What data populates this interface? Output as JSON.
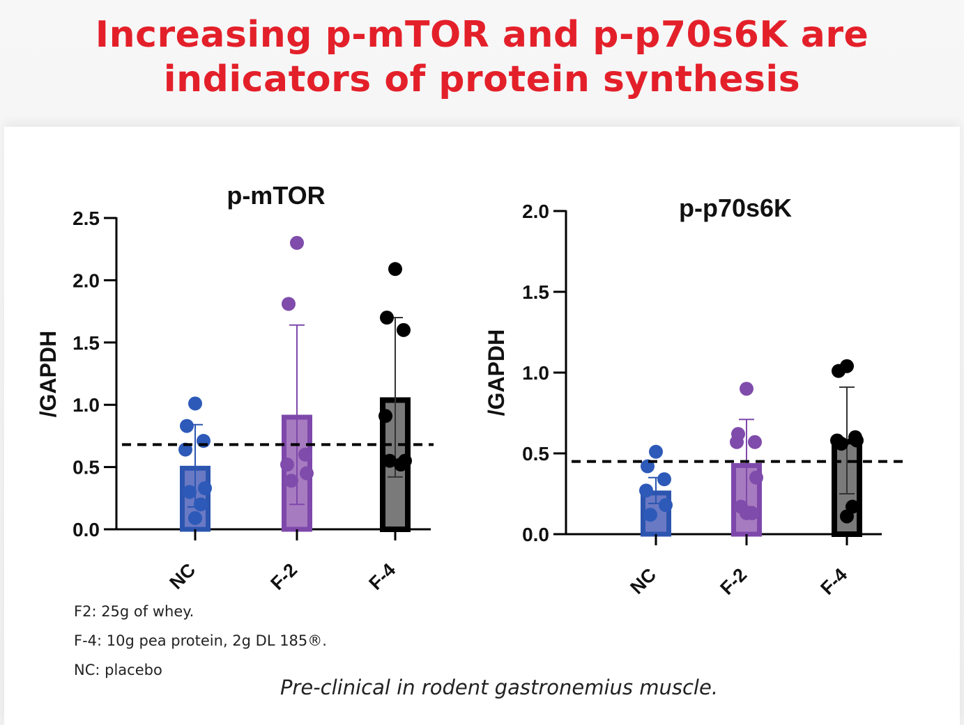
{
  "header": {
    "title_line1": "Increasing p-mTOR and p-p70s6K are",
    "title_line2": "indicators of protein synthesis",
    "color": "#e3202a"
  },
  "notes": [
    "F2: 25g of whey.",
    "F-4: 10g pea protein, 2g DL 185®.",
    "NC: placebo"
  ],
  "caption": "Pre-clinical in rodent gastronemius muscle.",
  "chart_data": [
    {
      "type": "bar",
      "title": "p-mTOR",
      "xlabel": "",
      "ylabel": "/GAPDH",
      "ylim": [
        0,
        2.5
      ],
      "yticks": [
        "0.0",
        "0.5",
        "1.0",
        "1.5",
        "2.0",
        "2.5"
      ],
      "ytick_values": [
        0,
        0.5,
        1.0,
        1.5,
        2.0,
        2.5
      ],
      "categories": [
        "NC",
        "F-2",
        "F-4"
      ],
      "values": [
        0.51,
        0.92,
        1.06
      ],
      "error_upper": [
        0.84,
        1.64,
        1.7
      ],
      "error_lower": [
        0.18,
        0.2,
        0.42
      ],
      "reference_line": 0.68,
      "points": [
        [
          1.01,
          0.83,
          0.71,
          0.64,
          0.33,
          0.3,
          0.2,
          0.09
        ],
        [
          2.3,
          1.81,
          0.6,
          0.52,
          0.45,
          0.39
        ],
        [
          2.09,
          1.7,
          1.6,
          0.91,
          0.55,
          0.55,
          0.52
        ]
      ],
      "colors": {
        "fill": [
          "#6a79c4",
          "#a77bc0",
          "#7a7a7a"
        ],
        "edge": [
          "#2c55b0",
          "#7e48ab",
          "#000000"
        ],
        "point": [
          "#2d5ab8",
          "#7f4cab",
          "#000000"
        ]
      },
      "grid": false,
      "legend": "none"
    },
    {
      "type": "bar",
      "title": "p-p70s6K",
      "xlabel": "",
      "ylabel": "/GAPDH",
      "ylim": [
        0,
        2.0
      ],
      "yticks": [
        "0.0",
        "0.5",
        "1.0",
        "1.5",
        "2.0"
      ],
      "ytick_values": [
        0,
        0.5,
        1.0,
        1.5,
        2.0
      ],
      "categories": [
        "NC",
        "F-2",
        "F-4"
      ],
      "values": [
        0.27,
        0.44,
        0.59
      ],
      "error_upper": [
        0.35,
        0.71,
        0.91
      ],
      "error_lower": [
        0.19,
        0.17,
        0.25
      ],
      "reference_line": 0.45,
      "points": [
        [
          0.51,
          0.42,
          0.34,
          0.27,
          0.18,
          0.12
        ],
        [
          0.9,
          0.62,
          0.57,
          0.57,
          0.35,
          0.17,
          0.13,
          0.13
        ],
        [
          1.04,
          1.01,
          0.6,
          0.58,
          0.58,
          0.56,
          0.17,
          0.11
        ]
      ],
      "colors": {
        "fill": [
          "#6a79c4",
          "#a77bc0",
          "#7a7a7a"
        ],
        "edge": [
          "#2c55b0",
          "#7e48ab",
          "#000000"
        ],
        "point": [
          "#2d5ab8",
          "#7f4cab",
          "#000000"
        ]
      },
      "grid": false,
      "legend": "none"
    }
  ]
}
